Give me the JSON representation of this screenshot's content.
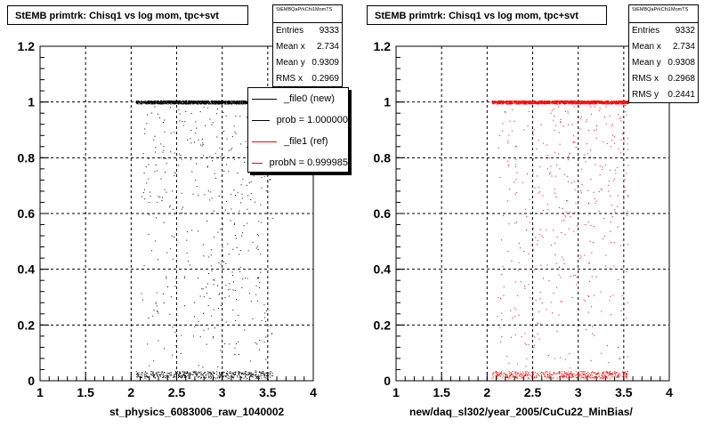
{
  "chart_data": [
    {
      "type": "scatter",
      "title": "StEMB primtrk: Chisq1 vs log mom, tpc+svt",
      "xlabel": "st_physics_6083006_raw_1040002",
      "ylabel": "",
      "xlim": [
        1,
        4
      ],
      "ylim": [
        0,
        1.2
      ],
      "x_ticks": [
        "1",
        "1.5",
        "2",
        "2.5",
        "3",
        "3.5",
        "4"
      ],
      "y_ticks": [
        "0",
        "0.2",
        "0.4",
        "0.6",
        "0.8",
        "1",
        "1.2"
      ],
      "grid": true,
      "marker_color": "#000000",
      "points_summary": {
        "x_range": [
          2.05,
          3.55
        ],
        "dense_band_y": 1.0,
        "low_band_y": 0.01,
        "x_mean": 2.734,
        "y_mean": 0.9309,
        "x_rms": 0.2969
      },
      "stats": {
        "name": "StEMBQaPrkChi1MomTS",
        "rows": [
          {
            "label": "Entries",
            "value": "9333"
          },
          {
            "label": "Mean x",
            "value": "2.734"
          },
          {
            "label": "Mean y",
            "value": "0.9309"
          },
          {
            "label": "RMS x",
            "value": "0.2969"
          }
        ]
      },
      "legend": [
        {
          "label": "_file0 (new)",
          "color": "#000000"
        },
        {
          "label": "prob = 1.000000",
          "color": "#000000"
        },
        {
          "label": "_file1 (ref)",
          "color": "#ff0000"
        },
        {
          "label": "probN = 0.999985",
          "color": "#ff0000"
        }
      ]
    },
    {
      "type": "scatter",
      "title": "StEMB primtrk: Chisq1 vs log mom, tpc+svt",
      "xlabel": "new/daq_sl302/year_2005/CuCu22_MinBias/",
      "ylabel": "",
      "xlim": [
        1,
        4
      ],
      "ylim": [
        0,
        1.2
      ],
      "x_ticks": [
        "1",
        "1.5",
        "2",
        "2.5",
        "3",
        "3.5",
        "4"
      ],
      "y_ticks": [
        "0",
        "0.2",
        "0.4",
        "0.6",
        "0.8",
        "1",
        "1.2"
      ],
      "grid": true,
      "marker_color": "#ff0000",
      "points_summary": {
        "x_range": [
          2.05,
          3.55
        ],
        "dense_band_y": 1.0,
        "low_band_y": 0.01,
        "x_mean": 2.734,
        "y_mean": 0.9308,
        "x_rms": 0.2968
      },
      "stats": {
        "name": "StEMBQaPrkChi1MomTS",
        "rows": [
          {
            "label": "Entries",
            "value": "9332"
          },
          {
            "label": "Mean x",
            "value": "2.734"
          },
          {
            "label": "Mean y",
            "value": "0.9308"
          },
          {
            "label": "RMS x",
            "value": "0.2968"
          },
          {
            "label": "RMS y",
            "value": "0.2441"
          }
        ]
      }
    }
  ]
}
